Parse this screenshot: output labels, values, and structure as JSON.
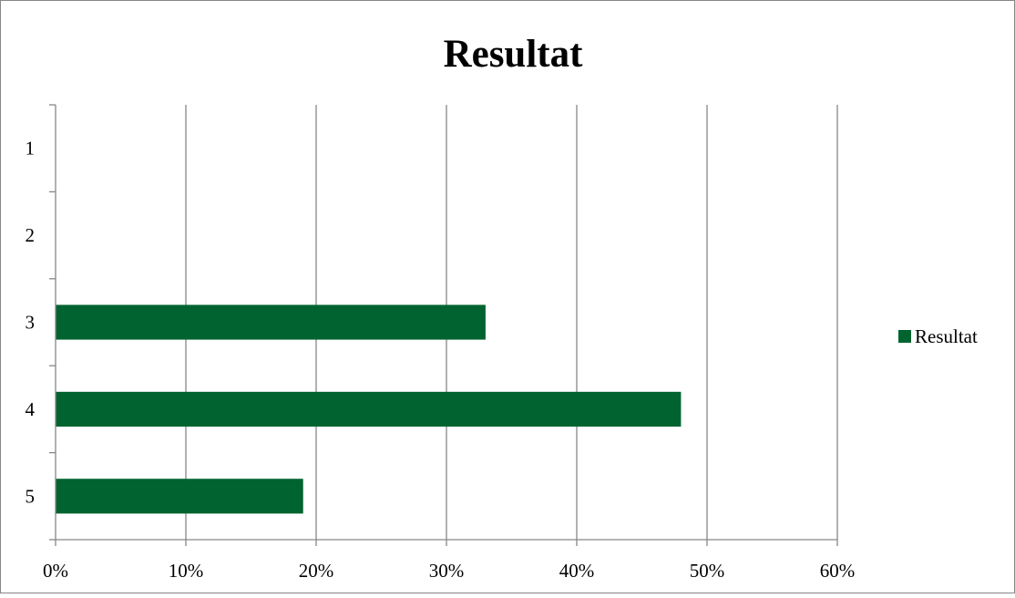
{
  "chart_data": {
    "type": "bar",
    "orientation": "horizontal",
    "title": "Resultat",
    "categories": [
      "1",
      "2",
      "3",
      "4",
      "5"
    ],
    "series": [
      {
        "name": "Resultat",
        "values": [
          0,
          0,
          0.33,
          0.48,
          0.19
        ],
        "color": "#006330"
      }
    ],
    "x_ticks": [
      0,
      0.1,
      0.2,
      0.3,
      0.4,
      0.5,
      0.6
    ],
    "x_tick_labels": [
      "0%",
      "10%",
      "20%",
      "30%",
      "40%",
      "50%",
      "60%"
    ],
    "xlim": [
      0,
      0.6
    ],
    "grid": true,
    "legend": {
      "position": "right",
      "label": "Resultat"
    },
    "colors": {
      "bar": "#006330",
      "grid": "#878787",
      "frame": "#878787"
    }
  }
}
